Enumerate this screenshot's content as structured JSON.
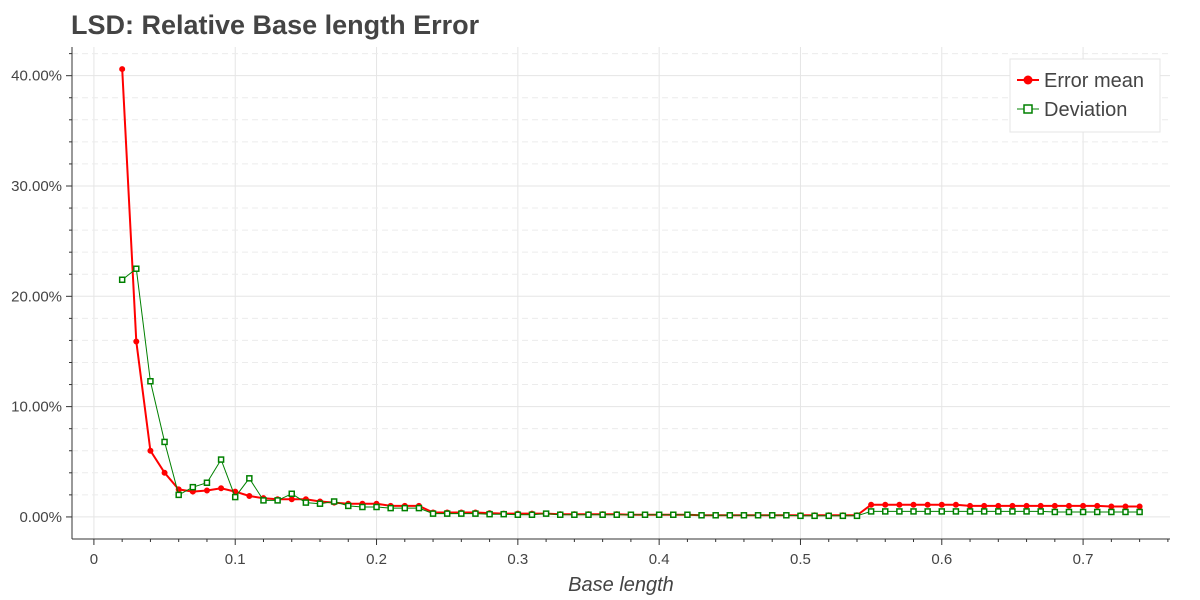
{
  "chart_data": {
    "type": "line",
    "title": "LSD: Relative Base length Error",
    "xlabel": "Base length",
    "ylabel": "",
    "xlim": [
      -0.0155,
      0.7615
    ],
    "ylim": [
      -2.0,
      42.6
    ],
    "xticks": [
      0,
      0.1,
      0.2,
      0.3,
      0.4,
      0.5,
      0.6,
      0.7
    ],
    "xtick_labels": [
      "0",
      "0.1",
      "0.2",
      "0.3",
      "0.4",
      "0.5",
      "0.6",
      "0.7"
    ],
    "yticks": [
      0,
      10,
      20,
      30,
      40
    ],
    "ytick_labels": [
      "0.00%",
      "10.00%",
      "20.00%",
      "30.00%",
      "40.00%"
    ],
    "grid": true,
    "legend_position": "top-right",
    "x": [
      0.02,
      0.03,
      0.04,
      0.05,
      0.06,
      0.07,
      0.08,
      0.09,
      0.1,
      0.11,
      0.12,
      0.13,
      0.14,
      0.15,
      0.16,
      0.17,
      0.18,
      0.19,
      0.2,
      0.21,
      0.22,
      0.23,
      0.24,
      0.25,
      0.26,
      0.27,
      0.28,
      0.29,
      0.3,
      0.31,
      0.32,
      0.33,
      0.34,
      0.35,
      0.36,
      0.37,
      0.38,
      0.39,
      0.4,
      0.41,
      0.42,
      0.43,
      0.44,
      0.45,
      0.46,
      0.47,
      0.48,
      0.49,
      0.5,
      0.51,
      0.52,
      0.53,
      0.54,
      0.55,
      0.56,
      0.57,
      0.58,
      0.59,
      0.6,
      0.61,
      0.62,
      0.63,
      0.64,
      0.65,
      0.66,
      0.67,
      0.68,
      0.69,
      0.7,
      0.71,
      0.72,
      0.73,
      0.74
    ],
    "series": [
      {
        "name": "Error mean",
        "color": "#ff0000",
        "marker": "circle",
        "values": [
          40.6,
          15.9,
          6.0,
          4.0,
          2.5,
          2.3,
          2.4,
          2.6,
          2.3,
          1.9,
          1.7,
          1.6,
          1.6,
          1.6,
          1.4,
          1.3,
          1.2,
          1.2,
          1.2,
          1.0,
          1.0,
          1.0,
          0.4,
          0.4,
          0.4,
          0.4,
          0.35,
          0.3,
          0.3,
          0.3,
          0.3,
          0.25,
          0.25,
          0.25,
          0.25,
          0.25,
          0.2,
          0.2,
          0.2,
          0.2,
          0.2,
          0.15,
          0.15,
          0.15,
          0.15,
          0.15,
          0.15,
          0.15,
          0.15,
          0.15,
          0.15,
          0.15,
          0.15,
          1.1,
          1.1,
          1.1,
          1.1,
          1.1,
          1.1,
          1.1,
          1.0,
          1.0,
          1.0,
          1.0,
          1.0,
          1.0,
          1.0,
          1.0,
          1.0,
          1.0,
          0.95,
          0.95,
          0.95
        ]
      },
      {
        "name": "Deviation",
        "color": "#008000",
        "marker": "square",
        "values": [
          21.5,
          22.5,
          12.3,
          6.8,
          2.0,
          2.7,
          3.1,
          5.2,
          1.8,
          3.5,
          1.5,
          1.5,
          2.1,
          1.3,
          1.2,
          1.4,
          1.0,
          0.9,
          0.9,
          0.8,
          0.8,
          0.8,
          0.3,
          0.3,
          0.3,
          0.3,
          0.25,
          0.25,
          0.2,
          0.2,
          0.3,
          0.2,
          0.2,
          0.2,
          0.2,
          0.2,
          0.2,
          0.2,
          0.2,
          0.2,
          0.2,
          0.15,
          0.15,
          0.15,
          0.15,
          0.15,
          0.15,
          0.15,
          0.1,
          0.1,
          0.1,
          0.1,
          0.1,
          0.5,
          0.5,
          0.5,
          0.5,
          0.5,
          0.5,
          0.5,
          0.5,
          0.5,
          0.5,
          0.5,
          0.5,
          0.5,
          0.45,
          0.45,
          0.45,
          0.45,
          0.45,
          0.45,
          0.45
        ]
      }
    ]
  }
}
